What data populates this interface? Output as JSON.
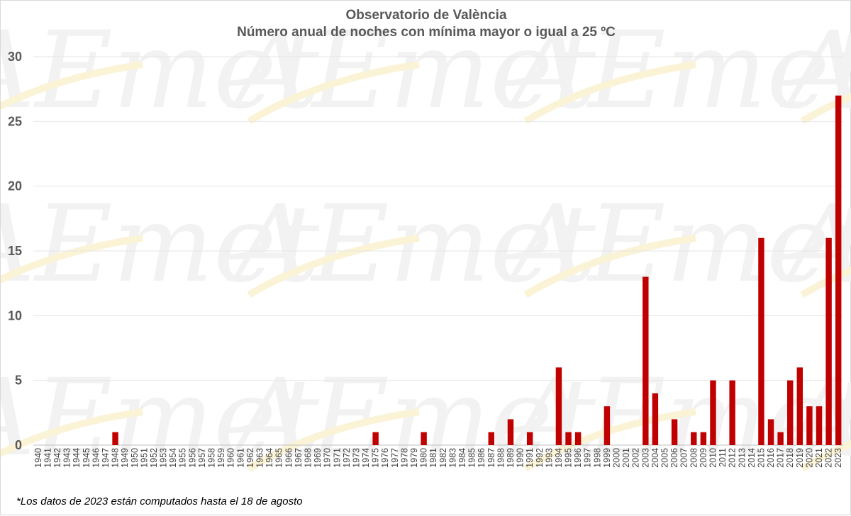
{
  "header": {
    "title": "Observatorio de València",
    "subtitle": "Número anual de noches con mínima mayor o igual a 25 ºC"
  },
  "footnote": "*Los datos de 2023 están computados hasta el 18 de agosto",
  "watermark": {
    "text": "AEmet"
  },
  "colors": {
    "bar": "#c00000",
    "grid": "#e6e6e6",
    "axis_text": "#595959",
    "watermark_gray": "#f2f2f2",
    "watermark_red": "#fbeeee",
    "watermark_yellow": "#fbf3d6"
  },
  "chart_data": {
    "type": "bar",
    "title": "Observatorio de València",
    "subtitle": "Número anual de noches con mínima mayor o igual a 25 ºC",
    "xlabel": "",
    "ylabel": "",
    "ylim": [
      0,
      30
    ],
    "yticks": [
      0,
      5,
      10,
      15,
      20,
      25,
      30
    ],
    "grid": true,
    "legend": "none",
    "categories": [
      "1940",
      "1941",
      "1942",
      "1943",
      "1944",
      "1945",
      "1946",
      "1947",
      "1948",
      "1949",
      "1950",
      "1951",
      "1952",
      "1953",
      "1954",
      "1955",
      "1956",
      "1957",
      "1958",
      "1959",
      "1960",
      "1961",
      "1962",
      "1963",
      "1964",
      "1965",
      "1966",
      "1967",
      "1968",
      "1969",
      "1970",
      "1971",
      "1972",
      "1973",
      "1974",
      "1975",
      "1976",
      "1977",
      "1978",
      "1979",
      "1980",
      "1981",
      "1982",
      "1983",
      "1984",
      "1985",
      "1986",
      "1987",
      "1988",
      "1989",
      "1990",
      "1991",
      "1992",
      "1993",
      "1994",
      "1995",
      "1996",
      "1997",
      "1998",
      "1999",
      "2000",
      "2001",
      "2002",
      "2003",
      "2004",
      "2005",
      "2006",
      "2007",
      "2008",
      "2009",
      "2010",
      "2011",
      "2012",
      "2013",
      "2014",
      "2015",
      "2016",
      "2017",
      "2018",
      "2019",
      "2020",
      "2021",
      "2022",
      "2023"
    ],
    "values": [
      0,
      0,
      0,
      0,
      0,
      0,
      0,
      0,
      1,
      0,
      0,
      0,
      0,
      0,
      0,
      0,
      0,
      0,
      0,
      0,
      0,
      0,
      0,
      0,
      0,
      0,
      0,
      0,
      0,
      0,
      0,
      0,
      0,
      0,
      0,
      1,
      0,
      0,
      0,
      0,
      1,
      0,
      0,
      0,
      0,
      0,
      0,
      1,
      0,
      2,
      0,
      1,
      0,
      0,
      6,
      1,
      1,
      0,
      0,
      3,
      0,
      0,
      0,
      13,
      4,
      0,
      2,
      0,
      1,
      1,
      5,
      0,
      5,
      0,
      0,
      16,
      2,
      1,
      5,
      6,
      3,
      3,
      16,
      27
    ]
  }
}
